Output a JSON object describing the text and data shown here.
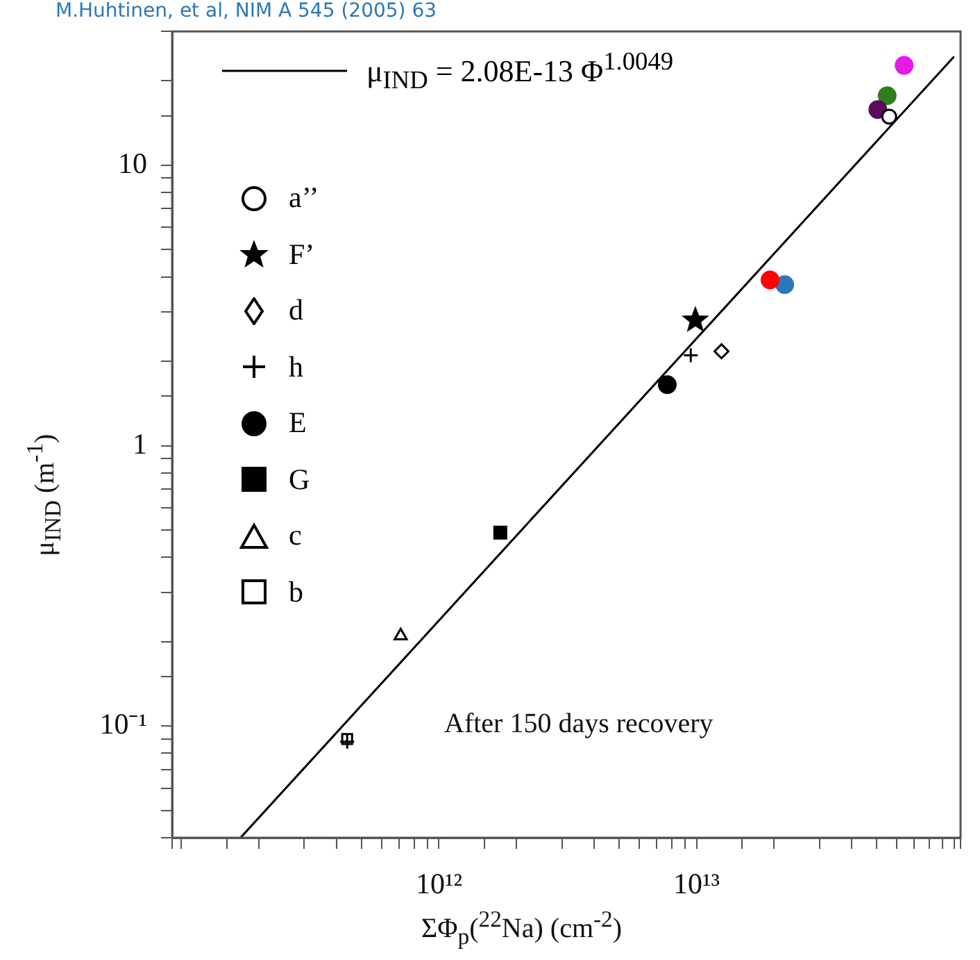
{
  "chart_data": {
    "type": "scatter",
    "xlabel": "ΣΦ$_{p}$($^{22}$Na) (cm$^{-2}$)",
    "ylabel": "μ$_{IND}$ (m$^{-1}$)",
    "log": "xy",
    "grid": false,
    "legend": "top left",
    "xlim": [
      92000000000.0,
      106000000000000.0
    ],
    "xticks": [
      {
        "value": 200000000000.0,
        "label": null
      },
      {
        "value": 300000000000.0,
        "label": null
      },
      {
        "value": 400000000000.0,
        "label": null
      },
      {
        "value": 500000000000.0,
        "label": null
      },
      {
        "value": 600000000000.0,
        "label": null
      },
      {
        "value": 700000000000.0,
        "label": null
      },
      {
        "value": 800000000000.0,
        "label": null
      },
      {
        "value": 900000000000.0,
        "label": null
      },
      {
        "value": 1000000000000.0,
        "label": "10¹²"
      },
      {
        "value": 2000000000000.0,
        "label": null
      },
      {
        "value": 3000000000000.0,
        "label": null
      },
      {
        "value": 4000000000000.0,
        "label": null
      },
      {
        "value": 5000000000000.0,
        "label": null
      },
      {
        "value": 6000000000000.0,
        "label": null
      },
      {
        "value": 7000000000000.0,
        "label": null
      },
      {
        "value": 8000000000000.0,
        "label": null
      },
      {
        "value": 9000000000000.0,
        "label": null
      },
      {
        "value": 10000000000000.0,
        "label": "10¹³"
      },
      {
        "value": 20000000000000.0,
        "label": null
      },
      {
        "value": 30000000000000.0,
        "label": null
      },
      {
        "value": 40000000000000.0,
        "label": null
      },
      {
        "value": 50000000000000.0,
        "label": null
      },
      {
        "value": 60000000000000.0,
        "label": null
      },
      {
        "value": 70000000000000.0,
        "label": null
      },
      {
        "value": 80000000000000.0,
        "label": null
      },
      {
        "value": 90000000000000.0,
        "label": null
      }
    ],
    "ylim": [
      0.04,
      30
    ],
    "yticks": [
      {
        "value": 0.05,
        "label": null
      },
      {
        "value": 0.06,
        "label": null
      },
      {
        "value": 0.07,
        "label": null
      },
      {
        "value": 0.08,
        "label": null
      },
      {
        "value": 0.09,
        "label": null
      },
      {
        "value": 0.1,
        "label": "10⁻¹"
      },
      {
        "value": 0.2,
        "label": null
      },
      {
        "value": 0.3,
        "label": null
      },
      {
        "value": 0.4,
        "label": null
      },
      {
        "value": 0.5,
        "label": null
      },
      {
        "value": 0.6,
        "label": null
      },
      {
        "value": 0.7,
        "label": null
      },
      {
        "value": 0.8,
        "label": null
      },
      {
        "value": 0.9,
        "label": null
      },
      1,
      {
        "value": 2,
        "label": null
      },
      {
        "value": 3,
        "label": null
      },
      {
        "value": 4,
        "label": null
      },
      {
        "value": 5,
        "label": null
      },
      {
        "value": 6,
        "label": null
      },
      {
        "value": 7,
        "label": null
      },
      {
        "value": 8,
        "label": null
      },
      {
        "value": 9,
        "label": null
      },
      10,
      {
        "value": 20,
        "label": null
      }
    ],
    "series": [
      {
        "name": "μ$_{IND}$ = 2.08E-13 Φ$^{1.0049}$",
        "type": "line",
        "color": "#000000",
        "marker": "none",
        "line_style": "solid",
        "x": [
          170000000000.0,
          100000000000000.0
        ],
        "values": [
          0.0401,
          24.4
        ]
      },
      {
        "name": "a’’",
        "color": "#000000",
        "marker": "circle",
        "x": [
          56000000000000.0
        ],
        "values": [
          14.9
        ]
      },
      {
        "name": "F’",
        "color": "#000000",
        "marker": "star",
        "x": [
          9900000000000.0
        ],
        "values": [
          2.8
        ]
      },
      {
        "name": "d",
        "color": "#000000",
        "marker": "diamond",
        "x": [
          12500000000000.0
        ],
        "values": [
          2.17
        ]
      },
      {
        "name": "h",
        "color": "#000000",
        "marker": "cross",
        "x": [
          440000000000.0,
          9500000000000.0
        ],
        "values": [
          0.088,
          2.1
        ]
      },
      {
        "name": "E",
        "color": "#000000",
        "marker": "circle",
        "x": [
          7700000000000.0
        ],
        "values": [
          1.65
        ]
      },
      {
        "name": "G",
        "color": "#000000",
        "marker": "square",
        "x": [
          1730000000000.0
        ],
        "values": [
          0.49
        ]
      },
      {
        "name": "c",
        "color": "#000000",
        "marker": "triangle",
        "x": [
          710000000000.0
        ],
        "values": [
          0.21
        ]
      },
      {
        "name": "b",
        "color": "#000000",
        "marker": "square",
        "x": [
          440000000000.0
        ],
        "values": [
          0.09
        ]
      },
      {
        "color": "#ff0000",
        "marker": "circle",
        "x": [
          19300000000000.0
        ],
        "values": [
          3.9
        ]
      },
      {
        "color": "#2a78b8",
        "marker": "circle",
        "x": [
          22000000000000.0
        ],
        "values": [
          3.75
        ]
      },
      {
        "color": "#5c0a5c",
        "marker": "circle",
        "x": [
          50600000000000.0
        ],
        "values": [
          15.8
        ]
      },
      {
        "color": "#2e7d1e",
        "marker": "circle",
        "x": [
          55000000000000.0
        ],
        "values": [
          17.7
        ]
      },
      {
        "color": "#e619e6",
        "marker": "circle",
        "x": [
          64000000000000.0
        ],
        "values": [
          22.7
        ]
      }
    ],
    "annotations": [
      "After 150 days recovery",
      "M.Huhtinen, et al, NIM A 545 (2005) 63"
    ]
  }
}
